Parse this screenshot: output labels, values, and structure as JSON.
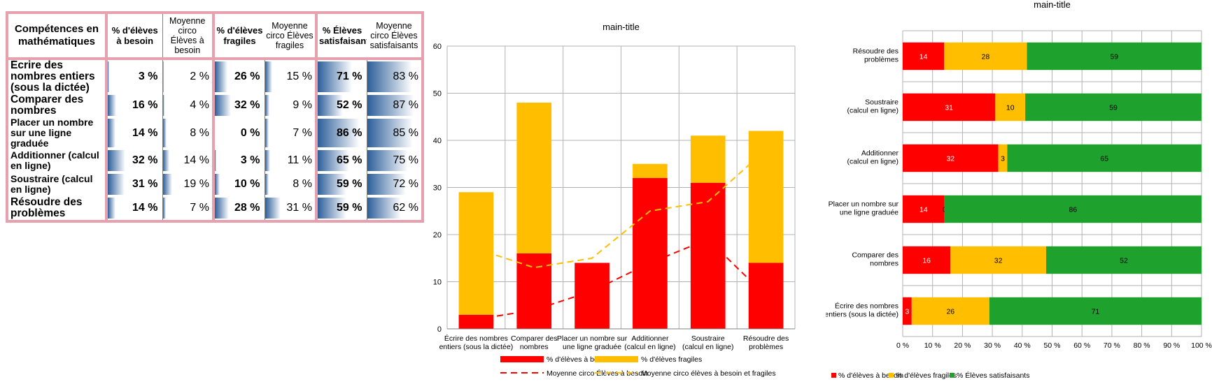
{
  "table": {
    "headers": {
      "competence": "Compétences en mathématiques",
      "besoin": "% d'élèves à besoin",
      "moy_besoin": "Moyenne circo Élèves à besoin",
      "fragiles": "% d'élèves fragiles",
      "moy_fragiles": "Moyenne circo Élèves fragiles",
      "satisfaisants": "% Élèves satisfaisants",
      "moy_satisfaisants": "Moyenne circo Élèves satisfaisants"
    },
    "rows": [
      {
        "label": "Écrire des nombres entiers (sous la dictée)",
        "besoin": "3 %",
        "moy_besoin": "2 %",
        "fragiles": "26 %",
        "moy_fragiles": "15 %",
        "satisfaisants": "71 %",
        "moy_satisfaisants": "83 %"
      },
      {
        "label": "Comparer des nombres",
        "besoin": "16 %",
        "moy_besoin": "4 %",
        "fragiles": "32 %",
        "moy_fragiles": "9 %",
        "satisfaisants": "52 %",
        "moy_satisfaisants": "87 %"
      },
      {
        "label": "Placer un nombre sur une ligne graduée",
        "besoin": "14 %",
        "moy_besoin": "8 %",
        "fragiles": "0 %",
        "moy_fragiles": "7 %",
        "satisfaisants": "86 %",
        "moy_satisfaisants": "85 %"
      },
      {
        "label": "Additionner (calcul en ligne)",
        "besoin": "32 %",
        "moy_besoin": "14 %",
        "fragiles": "3 %",
        "moy_fragiles": "11 %",
        "satisfaisants": "65 %",
        "moy_satisfaisants": "75 %"
      },
      {
        "label": "Soustraire (calcul en ligne)",
        "besoin": "31 %",
        "moy_besoin": "19 %",
        "fragiles": "10 %",
        "moy_fragiles": "8 %",
        "satisfaisants": "59 %",
        "moy_satisfaisants": "72 %"
      },
      {
        "label": "Résoudre des problèmes",
        "besoin": "14 %",
        "moy_besoin": "7 %",
        "fragiles": "28 %",
        "moy_fragiles": "31 %",
        "satisfaisants": "59 %",
        "moy_satisfaisants": "62 %"
      }
    ],
    "bar_color": "#2d5f9a"
  },
  "chart_data": [
    {
      "type": "bar",
      "title": "main-title",
      "stacked": true,
      "categories": [
        "Écrire des nombres entiers (sous la dictée)",
        "Comparer des nombres",
        "Placer un nombre sur une ligne graduée",
        "Additionner (calcul en ligne)",
        "Soustraire (calcul en ligne)",
        "Résoudre des problèmes"
      ],
      "category_lines": [
        [
          "Écrire des nombres",
          "entiers (sous la dictée)"
        ],
        [
          "Comparer des",
          "nombres"
        ],
        [
          "Placer un nombre sur",
          "une ligne graduée"
        ],
        [
          "Additionner",
          "(calcul en ligne)"
        ],
        [
          "Soustraire",
          "(calcul en ligne)"
        ],
        [
          "Résoudre des",
          "problèmes"
        ]
      ],
      "series": [
        {
          "name": "% d'élèves à besoin",
          "kind": "bar",
          "color": "#ff0000",
          "values": [
            3,
            16,
            14,
            32,
            31,
            14
          ]
        },
        {
          "name": "% d'élèves fragiles",
          "kind": "bar",
          "color": "#ffbf00",
          "values": [
            26,
            32,
            0,
            3,
            10,
            28
          ]
        },
        {
          "name": "Moyenne circo Élèves à besoin",
          "kind": "line",
          "dash": true,
          "color": "#ff0000",
          "values": [
            2,
            4,
            8,
            14,
            19,
            7
          ]
        },
        {
          "name": "Moyenne circo élèves à besoin et fragiles",
          "kind": "line",
          "dash": true,
          "color": "#ffbf00",
          "values": [
            17,
            13,
            15,
            25,
            27,
            38
          ]
        }
      ],
      "ylim": [
        0,
        60
      ],
      "yticks": [
        0,
        10,
        20,
        30,
        40,
        50,
        60
      ],
      "grid": true,
      "legend": "bottom"
    },
    {
      "type": "bar",
      "orientation": "horizontal",
      "stacked_percent": true,
      "title": "main-title",
      "categories": [
        "Résoudre des problèmes",
        "Soustraire (calcul en ligne)",
        "Additionner (calcul en ligne)",
        "Placer un nombre sur une ligne graduée",
        "Comparer des nombres",
        "Écrire des nombres entiers (sous la dictée)"
      ],
      "category_lines": [
        [
          "Résoudre des",
          "problèmes"
        ],
        [
          "Soustraire",
          "(calcul en ligne)"
        ],
        [
          "Additionner",
          "(calcul en ligne)"
        ],
        [
          "Placer un nombre sur",
          "une ligne graduée"
        ],
        [
          "Comparer des",
          "nombres"
        ],
        [
          "Écrire des nombres",
          "entiers (sous la dictée)"
        ]
      ],
      "series": [
        {
          "name": "% d'élèves à besoin",
          "color": "#ff0000",
          "values": [
            14,
            31,
            32,
            14,
            16,
            3
          ]
        },
        {
          "name": "% d'élèves fragiles",
          "color": "#ffbf00",
          "values": [
            28,
            10,
            3,
            0,
            32,
            26
          ]
        },
        {
          "name": "% Élèves satisfaisants",
          "color": "#1fa12e",
          "values": [
            59,
            59,
            65,
            86,
            52,
            71
          ]
        }
      ],
      "xticks": [
        "0 %",
        "10 %",
        "20 %",
        "30 %",
        "40 %",
        "50 %",
        "60 %",
        "70 %",
        "80 %",
        "90 %",
        "100 %"
      ],
      "xlim": [
        0,
        100
      ],
      "grid": true,
      "legend": "bottom"
    }
  ]
}
